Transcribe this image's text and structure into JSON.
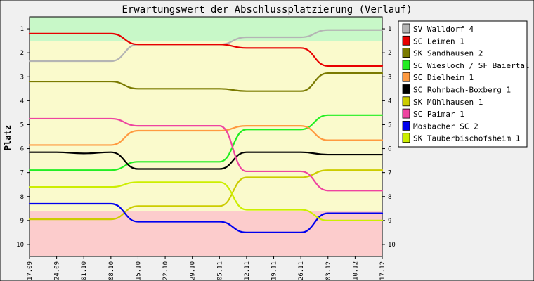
{
  "chart_data": {
    "type": "line",
    "title": "Erwartungswert der Abschlussplatzierung (Verlauf)",
    "ylabel": "Platz",
    "xlabel": "",
    "x": [
      "17.09",
      "24.09",
      "01.10",
      "08.10",
      "15.10",
      "22.10",
      "29.10",
      "05.11",
      "12.11",
      "19.11",
      "26.11",
      "03.12",
      "10.12",
      "17.12"
    ],
    "ylim": [
      10.5,
      0.5
    ],
    "y_ticks": [
      "1",
      "2",
      "3",
      "4",
      "5",
      "6",
      "7",
      "8",
      "9",
      "10"
    ],
    "y_axis_inverted": true,
    "grid": false,
    "legend_position": "right",
    "bands": [
      {
        "name": "promotion",
        "color": "#c8f8c8"
      },
      {
        "name": "middle",
        "color": "#fafacc"
      },
      {
        "name": "relegation",
        "color": "#fccccc"
      }
    ],
    "series": [
      {
        "name": "SV Walldorf 4",
        "color": "#b4b4b4",
        "values": [
          2.35,
          2.35,
          2.35,
          2.35,
          1.65,
          1.65,
          1.65,
          1.65,
          1.35,
          1.35,
          1.35,
          1.05,
          1.05,
          1.05
        ]
      },
      {
        "name": "SC Leimen 1",
        "color": "#e80000",
        "values": [
          1.2,
          1.2,
          1.2,
          1.2,
          1.65,
          1.65,
          1.65,
          1.65,
          1.8,
          1.8,
          1.8,
          2.55,
          2.55,
          2.55
        ]
      },
      {
        "name": "SK Sandhausen 2",
        "color": "#7a7a00",
        "values": [
          3.2,
          3.2,
          3.2,
          3.2,
          3.5,
          3.5,
          3.5,
          3.5,
          3.6,
          3.6,
          3.6,
          2.85,
          2.85,
          2.85
        ]
      },
      {
        "name": "SC Wiesloch / SF Baiertal 1",
        "color": "#22ee22",
        "values": [
          6.9,
          6.9,
          6.9,
          6.9,
          6.55,
          6.55,
          6.55,
          6.55,
          5.2,
          5.2,
          5.2,
          4.6,
          4.6,
          4.6
        ]
      },
      {
        "name": "SC Dielheim 1",
        "color": "#ff9a40",
        "values": [
          5.85,
          5.85,
          5.85,
          5.85,
          5.25,
          5.25,
          5.25,
          5.25,
          5.05,
          5.05,
          5.05,
          5.65,
          5.65,
          5.65
        ]
      },
      {
        "name": "SC Rohrbach-Boxberg 1",
        "color": "#000000",
        "values": [
          6.15,
          6.15,
          6.2,
          6.15,
          6.85,
          6.85,
          6.85,
          6.85,
          6.15,
          6.15,
          6.15,
          6.25,
          6.25,
          6.25
        ]
      },
      {
        "name": "SK Mühlhausen 1",
        "color": "#cccc00",
        "values": [
          8.95,
          8.95,
          8.95,
          8.95,
          8.4,
          8.4,
          8.4,
          8.4,
          7.2,
          7.2,
          7.2,
          6.9,
          6.9,
          6.9
        ]
      },
      {
        "name": "SC Paimar 1",
        "color": "#ee44a0",
        "values": [
          4.75,
          4.75,
          4.75,
          4.75,
          5.05,
          5.05,
          5.05,
          5.05,
          6.95,
          6.95,
          6.95,
          7.75,
          7.75,
          7.75
        ]
      },
      {
        "name": "Mosbacher SC 2",
        "color": "#0000ee",
        "values": [
          8.3,
          8.3,
          8.3,
          8.3,
          9.05,
          9.05,
          9.05,
          9.05,
          9.5,
          9.5,
          9.5,
          8.7,
          8.7,
          8.7
        ]
      },
      {
        "name": "SK Tauberbischofsheim 1",
        "color": "#ccee00",
        "values": [
          7.6,
          7.6,
          7.6,
          7.6,
          7.4,
          7.4,
          7.4,
          7.4,
          8.55,
          8.55,
          8.55,
          9.0,
          9.0,
          9.0
        ]
      }
    ]
  }
}
